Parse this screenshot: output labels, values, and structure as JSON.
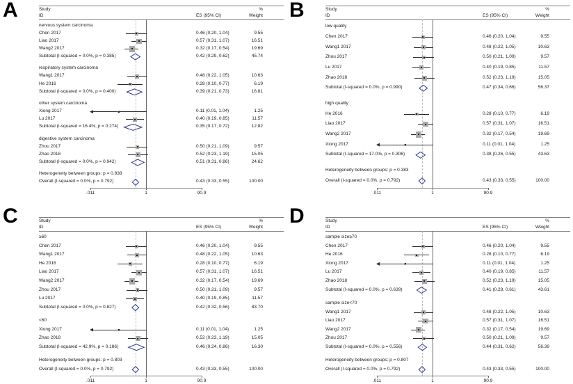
{
  "figure": {
    "columns": {
      "study1": "Study",
      "study2": "ID",
      "es": "ES (95% CI)",
      "weight1": "%",
      "weight2": "Weight"
    },
    "axis": {
      "min": 0.011,
      "max": 90.9,
      "null_line": 1,
      "overall_line": 0.43,
      "ticks": [
        ".011",
        "1",
        "90.9"
      ],
      "tick_values": [
        0.011,
        1,
        90.9
      ]
    },
    "colors": {
      "diamond": "#2b3a8f",
      "marker": "#a8a8a8",
      "marker_dot": "#1f1f1f",
      "ci_line": "#2a2a2a",
      "rule": "#7c7c7c",
      "dashed": "#bdbdbd",
      "text": "#1c1c1c"
    }
  },
  "chart_data": [
    {
      "type": "forest",
      "panel": "A",
      "scale": "log",
      "xlim": [
        0.011,
        90.9
      ],
      "rows": [
        {
          "kind": "group",
          "label": "nervous system carcinoma"
        },
        {
          "kind": "study",
          "label": "Chen 2017",
          "es": 0.46,
          "lo": 0.2,
          "hi": 1.04,
          "es_text": "0.46 (0.20, 1.04)",
          "weight": "9.55"
        },
        {
          "kind": "study",
          "label": "Liao 2017",
          "es": 0.57,
          "lo": 0.31,
          "hi": 1.07,
          "es_text": "0.57 (0.31, 1.07)",
          "weight": "16.51"
        },
        {
          "kind": "study",
          "label": "Wang2 2017",
          "es": 0.32,
          "lo": 0.17,
          "hi": 0.54,
          "es_text": "0.32 (0.17, 0.54)",
          "weight": "19.69"
        },
        {
          "kind": "subtotal",
          "label": "Subtotal (I-squared = 0.0%, p = 0.385)",
          "es": 0.42,
          "lo": 0.29,
          "hi": 0.62,
          "es_text": "0.42 (0.29, 0.62)",
          "weight": "45.74"
        },
        {
          "kind": "spacer"
        },
        {
          "kind": "group",
          "label": "respiratory system carcinoma"
        },
        {
          "kind": "study",
          "label": "Wang1 2017",
          "es": 0.48,
          "lo": 0.22,
          "hi": 1.05,
          "es_text": "0.48 (0.22, 1.05)",
          "weight": "10.63"
        },
        {
          "kind": "study",
          "label": "He 2016",
          "es": 0.28,
          "lo": 0.1,
          "hi": 0.77,
          "es_text": "0.28 (0.10, 0.77)",
          "weight": "6.19"
        },
        {
          "kind": "subtotal",
          "label": "Subtotal (I-squared = 0.0%, p = 0.400)",
          "es": 0.39,
          "lo": 0.21,
          "hi": 0.73,
          "es_text": "0.39 (0.21, 0.73)",
          "weight": "16.81"
        },
        {
          "kind": "spacer"
        },
        {
          "kind": "group",
          "label": "other system carcinoma"
        },
        {
          "kind": "study",
          "label": "Xiong 2017",
          "es": 0.11,
          "lo": 0.01,
          "hi": 1.04,
          "es_text": "0.11 (0.01, 1.04)",
          "weight": "1.25"
        },
        {
          "kind": "study",
          "label": "Lu 2017",
          "es": 0.4,
          "lo": 0.19,
          "hi": 0.85,
          "es_text": "0.40 (0.19, 0.85)",
          "weight": "11.57"
        },
        {
          "kind": "subtotal",
          "label": "Subtotal (I-squared = 16.4%, p = 0.274)",
          "es": 0.35,
          "lo": 0.17,
          "hi": 0.72,
          "es_text": "0.35 (0.17, 0.72)",
          "weight": "12.82"
        },
        {
          "kind": "spacer"
        },
        {
          "kind": "group",
          "label": "digestive system carcinoma"
        },
        {
          "kind": "study",
          "label": "Zhou 2017",
          "es": 0.5,
          "lo": 0.21,
          "hi": 1.09,
          "es_text": "0.50 (0.21, 1.09)",
          "weight": "9.57"
        },
        {
          "kind": "study",
          "label": "Zhao 2018",
          "es": 0.52,
          "lo": 0.23,
          "hi": 1.19,
          "es_text": "0.52 (0.23, 1.19)",
          "weight": "15.05"
        },
        {
          "kind": "subtotal",
          "label": "Subtotal (I-squared = 0.0%, p = 0.942)",
          "es": 0.51,
          "lo": 0.31,
          "hi": 0.86,
          "es_text": "0.51 (0.31, 0.86)",
          "weight": "24.62"
        },
        {
          "kind": "spacer"
        },
        {
          "kind": "note",
          "label": "Heterogeneity between groups: p = 0.838"
        },
        {
          "kind": "overall",
          "label": "Overall (I-squared = 0.0%, p = 0.792)",
          "es": 0.43,
          "lo": 0.33,
          "hi": 0.55,
          "es_text": "0.43 (0.33, 0.55)",
          "weight": "100.00"
        }
      ]
    },
    {
      "type": "forest",
      "panel": "B",
      "scale": "log",
      "xlim": [
        0.011,
        90.9
      ],
      "rows": [
        {
          "kind": "group",
          "label": "low quality"
        },
        {
          "kind": "study",
          "label": "Chen 2017",
          "es": 0.46,
          "lo": 0.2,
          "hi": 1.04,
          "es_text": "0.46 (0.20, 1.04)",
          "weight": "9.55"
        },
        {
          "kind": "study",
          "label": "Wang1 2017",
          "es": 0.48,
          "lo": 0.22,
          "hi": 1.05,
          "es_text": "0.48 (0.22, 1.05)",
          "weight": "10.63"
        },
        {
          "kind": "study",
          "label": "Zhou 2017",
          "es": 0.5,
          "lo": 0.21,
          "hi": 1.09,
          "es_text": "0.50 (0.21, 1.09)",
          "weight": "9.57"
        },
        {
          "kind": "study",
          "label": "Lu 2017",
          "es": 0.4,
          "lo": 0.19,
          "hi": 0.85,
          "es_text": "0.40 (0.19, 0.85)",
          "weight": "11.57"
        },
        {
          "kind": "study",
          "label": "Zhao 2018",
          "es": 0.52,
          "lo": 0.23,
          "hi": 1.19,
          "es_text": "0.52 (0.23, 1.19)",
          "weight": "15.05"
        },
        {
          "kind": "subtotal",
          "label": "Subtotal (I-squared = 0.0%, p = 0.990)",
          "es": 0.47,
          "lo": 0.34,
          "hi": 0.66,
          "es_text": "0.47 (0.34, 0.66)",
          "weight": "56.37"
        },
        {
          "kind": "spacer"
        },
        {
          "kind": "group",
          "label": "high quality"
        },
        {
          "kind": "study",
          "label": "He 2016",
          "es": 0.28,
          "lo": 0.1,
          "hi": 0.77,
          "es_text": "0.28 (0.10, 0.77)",
          "weight": "6.19"
        },
        {
          "kind": "study",
          "label": "Liao 2017",
          "es": 0.57,
          "lo": 0.31,
          "hi": 1.07,
          "es_text": "0.57 (0.31, 1.07)",
          "weight": "16.51"
        },
        {
          "kind": "study",
          "label": "Wang2 2017",
          "es": 0.32,
          "lo": 0.17,
          "hi": 0.54,
          "es_text": "0.32 (0.17, 0.54)",
          "weight": "19.69"
        },
        {
          "kind": "study",
          "label": "Xiong 2017",
          "es": 0.11,
          "lo": 0.01,
          "hi": 1.04,
          "es_text": "0.11 (0.01, 1.04)",
          "weight": "1.25"
        },
        {
          "kind": "subtotal",
          "label": "Subtotal (I-squared = 17.0%, p = 0.306)",
          "es": 0.38,
          "lo": 0.26,
          "hi": 0.55,
          "es_text": "0.38 (0.26, 0.55)",
          "weight": "43.63"
        },
        {
          "kind": "spacer"
        },
        {
          "kind": "note",
          "label": "Heterogeneity between groups: p = 0.383"
        },
        {
          "kind": "overall",
          "label": "Overall (I-squared = 0.0%, p = 0.792)",
          "es": 0.43,
          "lo": 0.33,
          "hi": 0.55,
          "es_text": "0.43 (0.33, 0.55)",
          "weight": "100.00"
        }
      ]
    },
    {
      "type": "forest",
      "panel": "C",
      "scale": "log",
      "xlim": [
        0.011,
        90.9
      ],
      "rows": [
        {
          "kind": "group",
          "label": "≥60"
        },
        {
          "kind": "study",
          "label": "Chen 2017",
          "es": 0.46,
          "lo": 0.2,
          "hi": 1.04,
          "es_text": "0.46 (0.20, 1.04)",
          "weight": "9.55"
        },
        {
          "kind": "study",
          "label": "Wang1 2017",
          "es": 0.48,
          "lo": 0.22,
          "hi": 1.05,
          "es_text": "0.48 (0.22, 1.05)",
          "weight": "10.63"
        },
        {
          "kind": "study",
          "label": "He 2016",
          "es": 0.28,
          "lo": 0.1,
          "hi": 0.77,
          "es_text": "0.28 (0.10, 0.77)",
          "weight": "6.19"
        },
        {
          "kind": "study",
          "label": "Liao 2017",
          "es": 0.57,
          "lo": 0.31,
          "hi": 1.07,
          "es_text": "0.57 (0.31, 1.07)",
          "weight": "16.51"
        },
        {
          "kind": "study",
          "label": "Wang2 2017",
          "es": 0.32,
          "lo": 0.17,
          "hi": 0.54,
          "es_text": "0.32 (0.17, 0.54)",
          "weight": "19.69"
        },
        {
          "kind": "study",
          "label": "Zhou 2017",
          "es": 0.5,
          "lo": 0.21,
          "hi": 1.09,
          "es_text": "0.50 (0.21, 1.09)",
          "weight": "9.57"
        },
        {
          "kind": "study",
          "label": "Lu 2017",
          "es": 0.4,
          "lo": 0.19,
          "hi": 0.85,
          "es_text": "0.40 (0.19, 0.85)",
          "weight": "11.57"
        },
        {
          "kind": "subtotal",
          "label": "Subtotal (I-squared = 0.0%, p = 0.827)",
          "es": 0.42,
          "lo": 0.32,
          "hi": 0.56,
          "es_text": "0.42 (0.32, 0.56)",
          "weight": "83.70"
        },
        {
          "kind": "spacer"
        },
        {
          "kind": "group",
          "label": "<60"
        },
        {
          "kind": "study",
          "label": "Xiong 2017",
          "es": 0.11,
          "lo": 0.01,
          "hi": 1.04,
          "es_text": "0.11 (0.01, 1.04)",
          "weight": "1.25"
        },
        {
          "kind": "study",
          "label": "Zhao 2018",
          "es": 0.52,
          "lo": 0.23,
          "hi": 1.19,
          "es_text": "0.52 (0.23, 1.19)",
          "weight": "15.05"
        },
        {
          "kind": "subtotal",
          "label": "Subtotal (I-squared = 42.9%, p = 0.186)",
          "es": 0.46,
          "lo": 0.24,
          "hi": 0.86,
          "es_text": "0.46 (0.24, 0.86)",
          "weight": "16.30"
        },
        {
          "kind": "spacer"
        },
        {
          "kind": "note",
          "label": "Heterogeneity between groups: p = 0.803"
        },
        {
          "kind": "overall",
          "label": "Overall (I-squared = 0.0%, p = 0.792)",
          "es": 0.43,
          "lo": 0.33,
          "hi": 0.55,
          "es_text": "0.43 (0.33, 0.55)",
          "weight": "100.00"
        }
      ]
    },
    {
      "type": "forest",
      "panel": "D",
      "scale": "log",
      "xlim": [
        0.011,
        90.9
      ],
      "rows": [
        {
          "kind": "group",
          "label": "sample size≥70"
        },
        {
          "kind": "study",
          "label": "Chen 2017",
          "es": 0.46,
          "lo": 0.2,
          "hi": 1.04,
          "es_text": "0.46 (0.20, 1.04)",
          "weight": "9.55"
        },
        {
          "kind": "study",
          "label": "He 2016",
          "es": 0.28,
          "lo": 0.1,
          "hi": 0.77,
          "es_text": "0.28 (0.10, 0.77)",
          "weight": "6.19"
        },
        {
          "kind": "study",
          "label": "Xiong 2017",
          "es": 0.11,
          "lo": 0.01,
          "hi": 1.04,
          "es_text": "0.11 (0.01, 1.04)",
          "weight": "1.25"
        },
        {
          "kind": "study",
          "label": "Lu 2017",
          "es": 0.4,
          "lo": 0.19,
          "hi": 0.85,
          "es_text": "0.40 (0.19, 0.85)",
          "weight": "11.57"
        },
        {
          "kind": "study",
          "label": "Zhao 2018",
          "es": 0.52,
          "lo": 0.23,
          "hi": 1.19,
          "es_text": "0.52 (0.23, 1.19)",
          "weight": "15.05"
        },
        {
          "kind": "subtotal",
          "label": "Subtotal (I-squared = 0.0%, p = 0.639)",
          "es": 0.41,
          "lo": 0.28,
          "hi": 0.61,
          "es_text": "0.41 (0.28, 0.61)",
          "weight": "43.61"
        },
        {
          "kind": "spacer"
        },
        {
          "kind": "group",
          "label": "sample size<70"
        },
        {
          "kind": "study",
          "label": "Wang1 2017",
          "es": 0.48,
          "lo": 0.22,
          "hi": 1.05,
          "es_text": "0.48 (0.22, 1.05)",
          "weight": "10.63"
        },
        {
          "kind": "study",
          "label": "Liao 2017",
          "es": 0.57,
          "lo": 0.31,
          "hi": 1.07,
          "es_text": "0.57 (0.31, 1.07)",
          "weight": "16.51"
        },
        {
          "kind": "study",
          "label": "Wang2 2017",
          "es": 0.32,
          "lo": 0.17,
          "hi": 0.54,
          "es_text": "0.32 (0.17, 0.54)",
          "weight": "19.69"
        },
        {
          "kind": "study",
          "label": "Zhou 2017",
          "es": 0.5,
          "lo": 0.21,
          "hi": 1.09,
          "es_text": "0.50 (0.21, 1.09)",
          "weight": "9.57"
        },
        {
          "kind": "subtotal",
          "label": "Subtotal (I-squared = 0.0%, p = 0.556)",
          "es": 0.44,
          "lo": 0.31,
          "hi": 0.62,
          "es_text": "0.44 (0.31, 0.62)",
          "weight": "56.39"
        },
        {
          "kind": "spacer"
        },
        {
          "kind": "note",
          "label": "Heterogeneity between groups: p = 0.807"
        },
        {
          "kind": "overall",
          "label": "Overall (I-squared = 0.0%, p = 0.792)",
          "es": 0.43,
          "lo": 0.33,
          "hi": 0.55,
          "es_text": "0.43 (0.33, 0.55)",
          "weight": "100.00"
        }
      ]
    }
  ]
}
